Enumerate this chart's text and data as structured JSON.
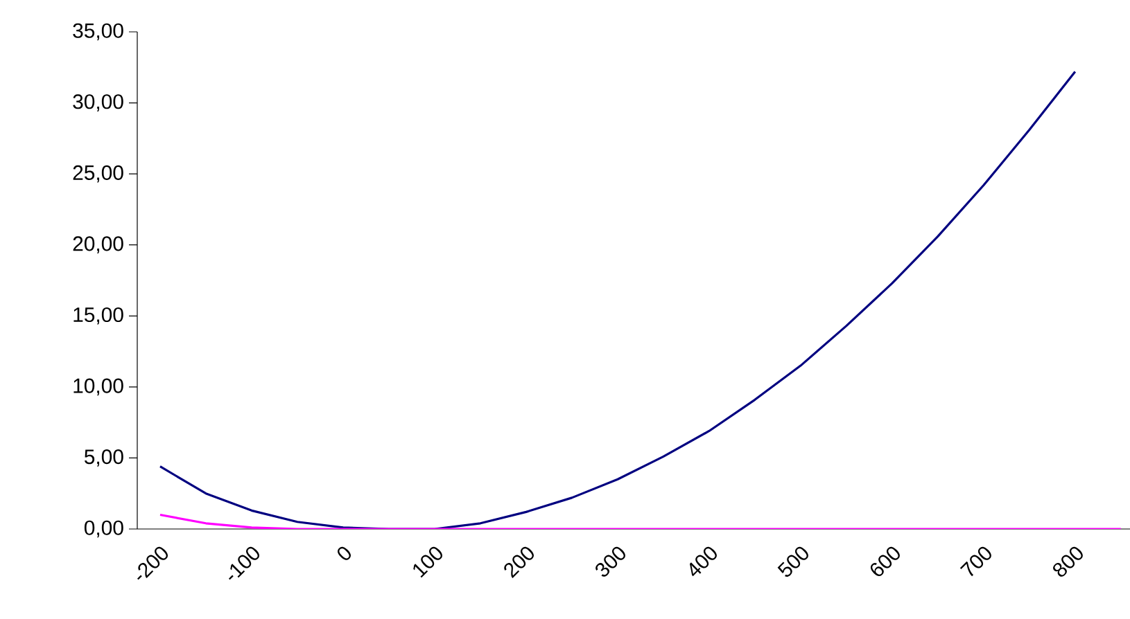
{
  "chart_data": {
    "type": "line",
    "categories": [
      "-200",
      null,
      "-100",
      null,
      "0",
      null,
      "100",
      null,
      "200",
      null,
      "300",
      null,
      "400",
      null,
      "500",
      null,
      "600",
      null,
      "700",
      null,
      "800",
      null
    ],
    "series": [
      {
        "color": "#000080",
        "values": [
          4.4,
          2.5,
          1.3,
          0.5,
          0.1,
          0,
          0,
          0.4,
          1.2,
          2.2,
          3.5,
          5.1,
          6.9,
          9.1,
          11.5,
          14.3,
          17.3,
          20.6,
          24.2,
          28.1,
          32.2,
          null
        ]
      },
      {
        "color": "#ff00ff",
        "values": [
          1.0,
          0.4,
          0.1,
          0,
          0,
          0,
          0,
          0,
          0,
          0,
          0,
          0,
          0,
          0,
          0,
          0,
          0,
          0,
          0,
          0,
          0,
          0
        ]
      }
    ],
    "ylim": [
      0,
      35
    ],
    "yticks": [
      {
        "value": 0,
        "label": "0,00"
      },
      {
        "value": 5,
        "label": "5,00"
      },
      {
        "value": 10,
        "label": "10,00"
      },
      {
        "value": 15,
        "label": "15,00"
      },
      {
        "value": 20,
        "label": "20,00"
      },
      {
        "value": 25,
        "label": "25,00"
      },
      {
        "value": 30,
        "label": "30,00"
      },
      {
        "value": 35,
        "label": "35,00"
      }
    ],
    "grid": false,
    "marker": "none",
    "line_style": "solid"
  }
}
